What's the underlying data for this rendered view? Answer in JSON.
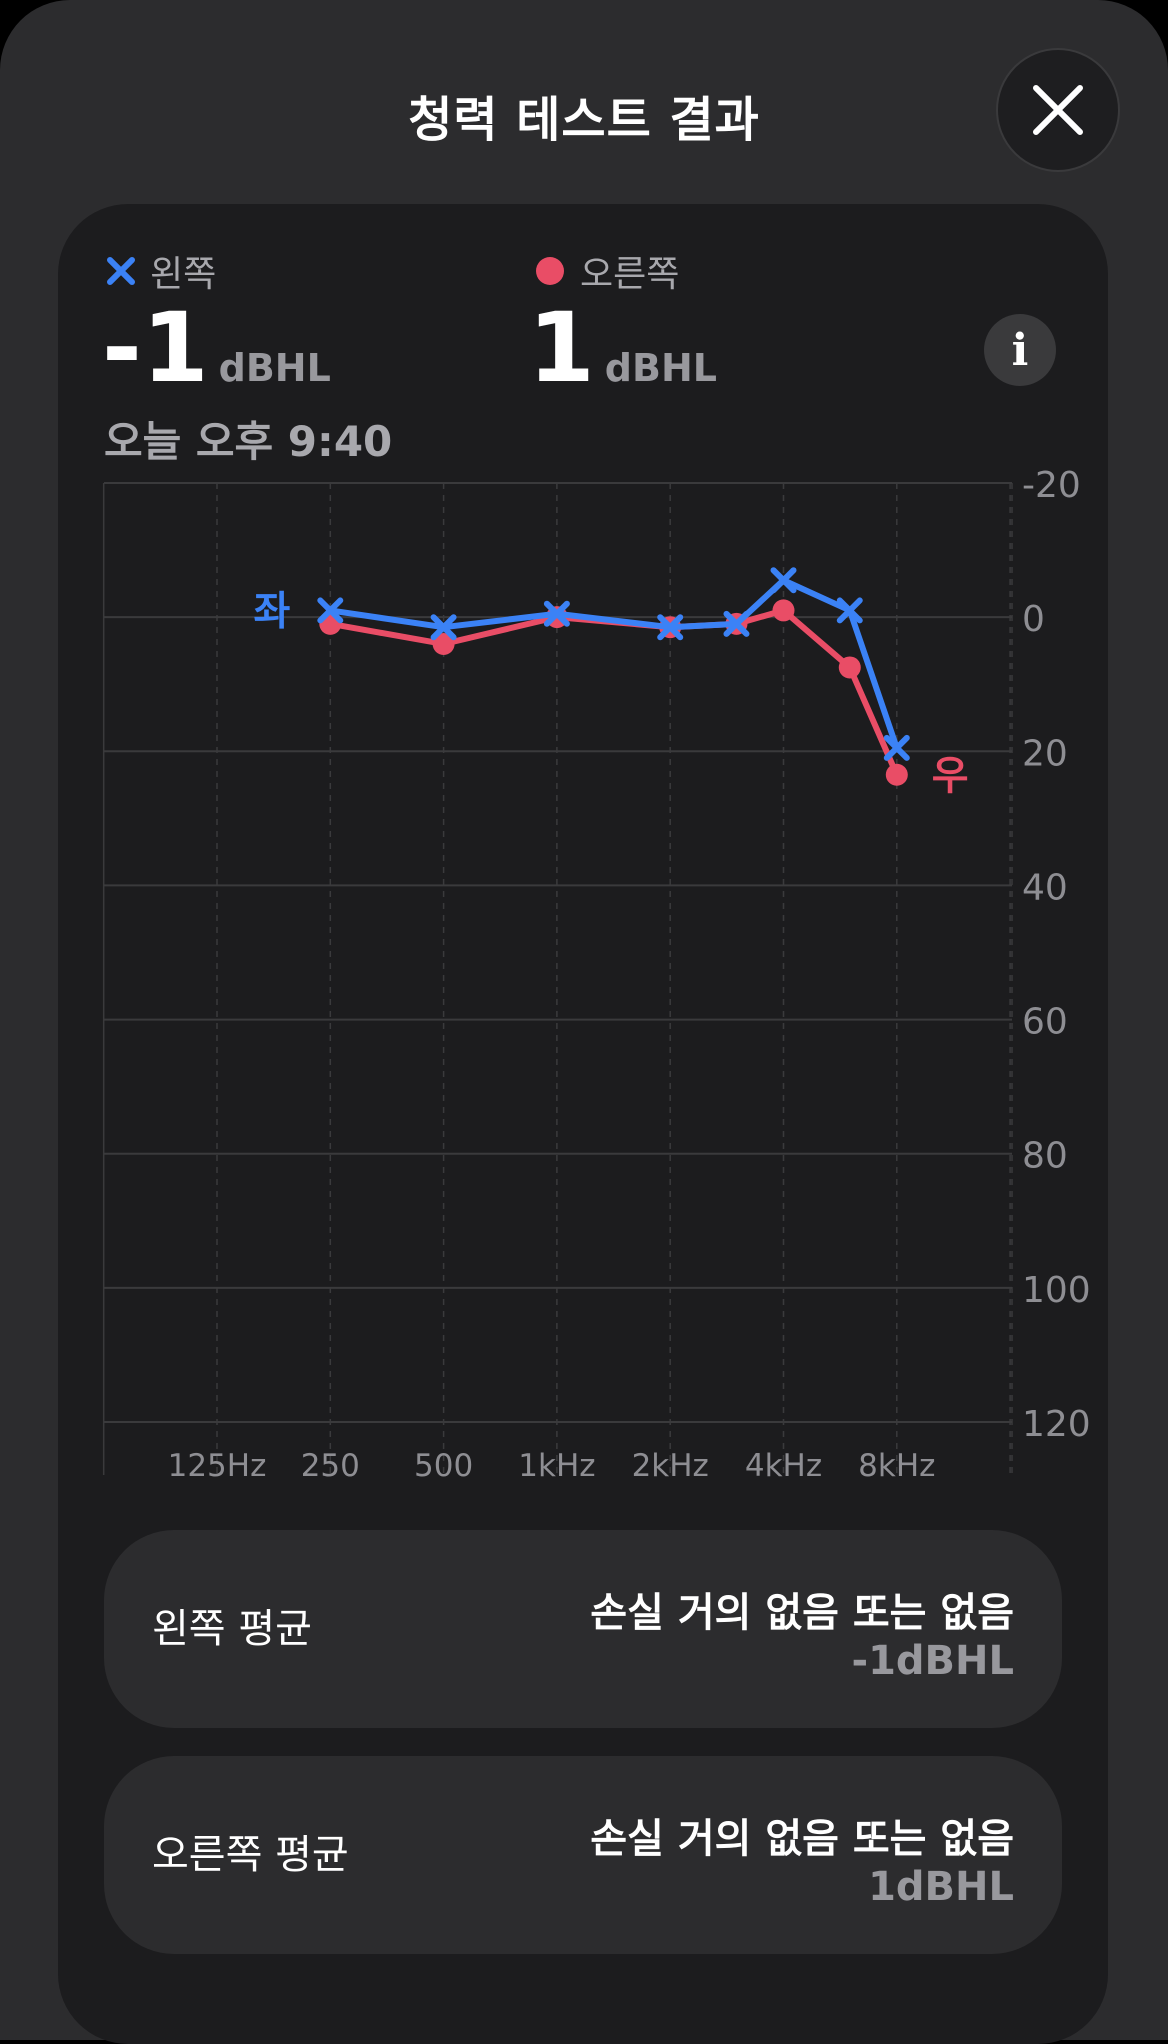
{
  "header": {
    "title": "청력 테스트 결과",
    "close_icon": "close-icon"
  },
  "summary": {
    "left": {
      "legend": "왼쪽",
      "value": "-1",
      "unit": "dBHL",
      "color": "#3b82f6"
    },
    "right": {
      "legend": "오른쪽",
      "value": "1",
      "unit": "dBHL",
      "color": "#e94d66"
    },
    "timestamp": "오늘 오후 9:40",
    "info_icon": "info-icon"
  },
  "chart_data": {
    "type": "line",
    "x_tick_labels": [
      "125Hz",
      "250",
      "500",
      "1kHz",
      "2kHz",
      "4kHz",
      "8kHz"
    ],
    "y_tick_labels": [
      "-20",
      "0",
      "20",
      "40",
      "60",
      "80",
      "100",
      "120"
    ],
    "ylim": [
      -20,
      120
    ],
    "y_inverted": true,
    "grid": true,
    "legend_position": "top",
    "series": [
      {
        "name": "왼쪽",
        "end_label": "좌",
        "color": "#3b82f6",
        "marker": "x",
        "points": [
          {
            "freq": 250,
            "dB": -1
          },
          {
            "freq": 500,
            "dB": 1.5
          },
          {
            "freq": 1000,
            "dB": -0.5
          },
          {
            "freq": 2000,
            "dB": 1.5
          },
          {
            "freq": 3000,
            "dB": 1
          },
          {
            "freq": 4000,
            "dB": -5.5
          },
          {
            "freq": 6000,
            "dB": -1
          },
          {
            "freq": 8000,
            "dB": 19.5
          }
        ]
      },
      {
        "name": "오른쪽",
        "end_label": "우",
        "color": "#e94d66",
        "marker": "circle",
        "points": [
          {
            "freq": 250,
            "dB": 1
          },
          {
            "freq": 500,
            "dB": 4
          },
          {
            "freq": 1000,
            "dB": 0
          },
          {
            "freq": 2000,
            "dB": 1.5
          },
          {
            "freq": 3000,
            "dB": 1
          },
          {
            "freq": 4000,
            "dB": -1
          },
          {
            "freq": 6000,
            "dB": 7.5
          },
          {
            "freq": 8000,
            "dB": 23.5
          }
        ]
      }
    ]
  },
  "averages": [
    {
      "label": "왼쪽 평균",
      "description": "손실 거의 없음 또는 없음",
      "value": "-1dBHL"
    },
    {
      "label": "오른쪽 평균",
      "description": "손실 거의 없음 또는 없음",
      "value": "1dBHL"
    }
  ]
}
